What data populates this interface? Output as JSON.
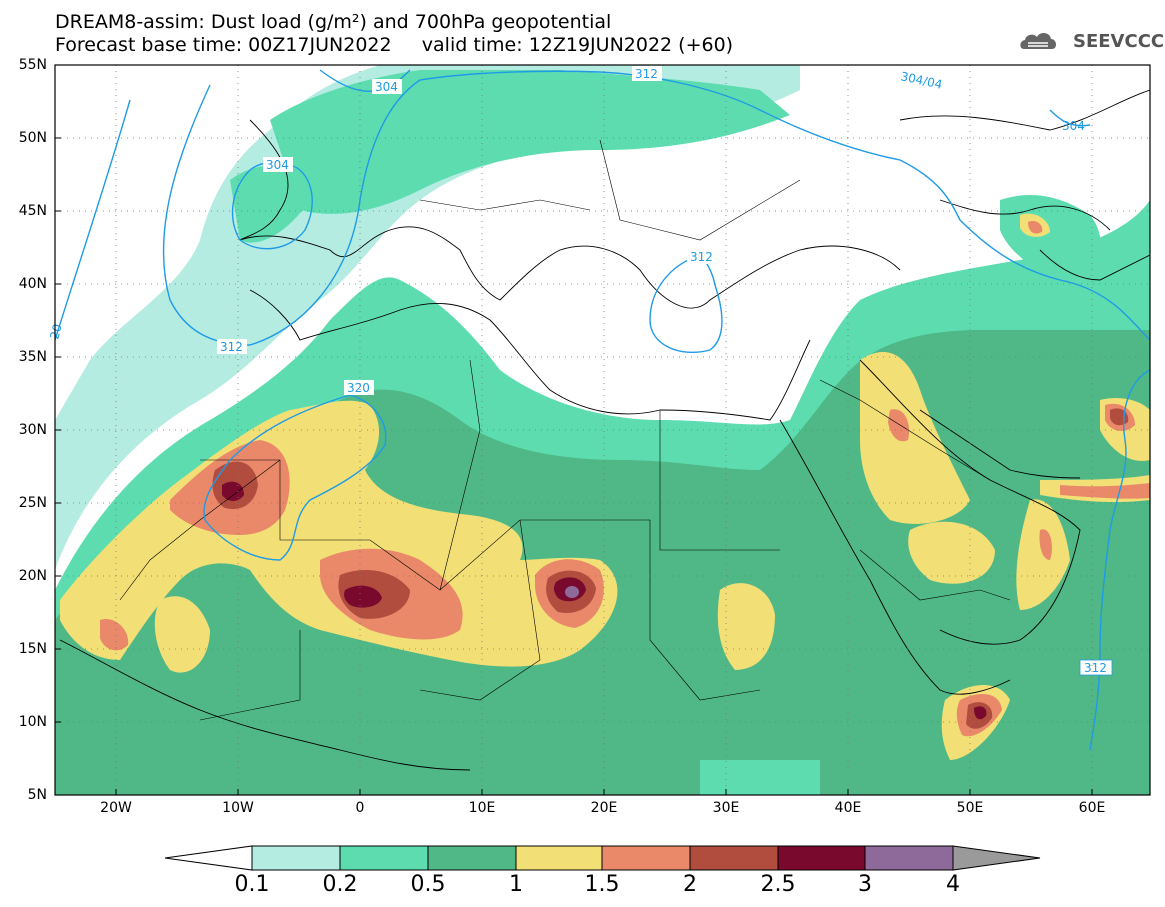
{
  "title": {
    "line1": "DREAM8-assim: Dust load (g/m²) and 700hPa geopotential",
    "line2": "Forecast base time: 00Z17JUN2022     valid time: 12Z19JUN2022 (+60)"
  },
  "logo": {
    "text": "SEEVCCC",
    "icon": "cloud-icon"
  },
  "axes": {
    "lat_labels": [
      "55N",
      "50N",
      "45N",
      "40N",
      "35N",
      "30N",
      "25N",
      "20N",
      "15N",
      "10N",
      "5N"
    ],
    "lon_labels": [
      "20W",
      "10W",
      "0",
      "10E",
      "20E",
      "30E",
      "40E",
      "50E",
      "60E"
    ],
    "lon_range": [
      -25,
      65
    ],
    "lat_range": [
      5,
      55
    ]
  },
  "contours": {
    "labels": [
      "304",
      "312",
      "304/04",
      "304",
      "304",
      "312",
      "312",
      "320",
      "312",
      "20"
    ]
  },
  "colorbar": {
    "levels": [
      "0.1",
      "0.2",
      "0.5",
      "1",
      "1.5",
      "2",
      "2.5",
      "3",
      "4"
    ],
    "colors": [
      "#ffffff",
      "#b5ece1",
      "#5ddcb0",
      "#50b886",
      "#f2e077",
      "#e9896a",
      "#b04d3f",
      "#7a0a2d",
      "#8e6a9a",
      "#9a9a9a"
    ]
  }
}
